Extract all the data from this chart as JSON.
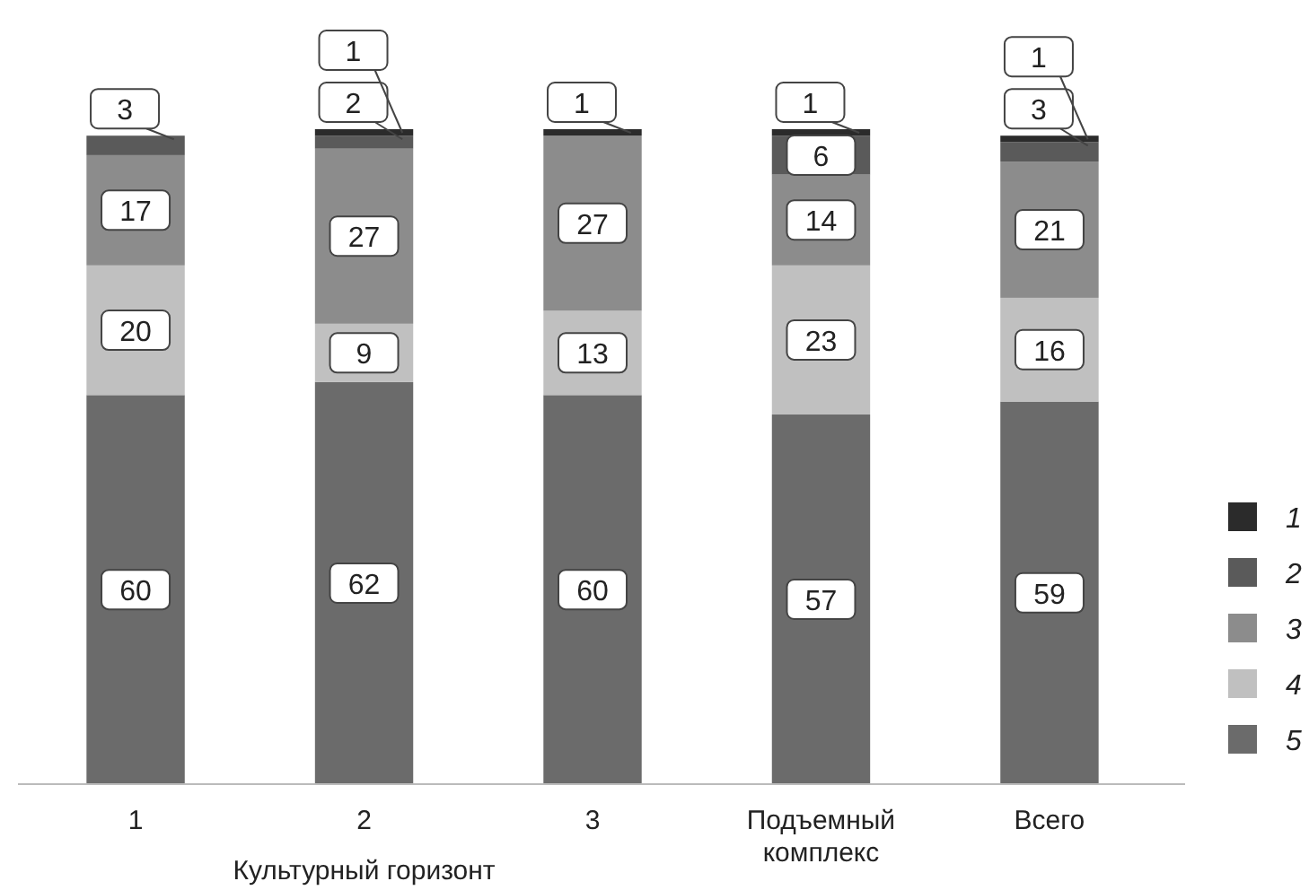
{
  "chart_data": {
    "type": "bar",
    "stacked": true,
    "data_labels": true,
    "legend": "bottom right",
    "xlabel": "Культурный горизонт",
    "categories": [
      "1",
      "2",
      "3",
      "Подъемный комплекс",
      "Всего"
    ],
    "series": [
      {
        "name": "5",
        "color": "#6b6b6b",
        "values": [
          60,
          62,
          60,
          57,
          59
        ]
      },
      {
        "name": "4",
        "color": "#c0c0c0",
        "values": [
          20,
          9,
          13,
          23,
          16
        ]
      },
      {
        "name": "3",
        "color": "#8c8c8c",
        "values": [
          17,
          27,
          27,
          14,
          21
        ]
      },
      {
        "name": "2",
        "color": "#5a5a5a",
        "values": [
          3,
          2,
          null,
          6,
          3
        ]
      },
      {
        "name": "1",
        "color": "#2b2b2b",
        "values": [
          null,
          1,
          1,
          1,
          1
        ]
      }
    ]
  }
}
